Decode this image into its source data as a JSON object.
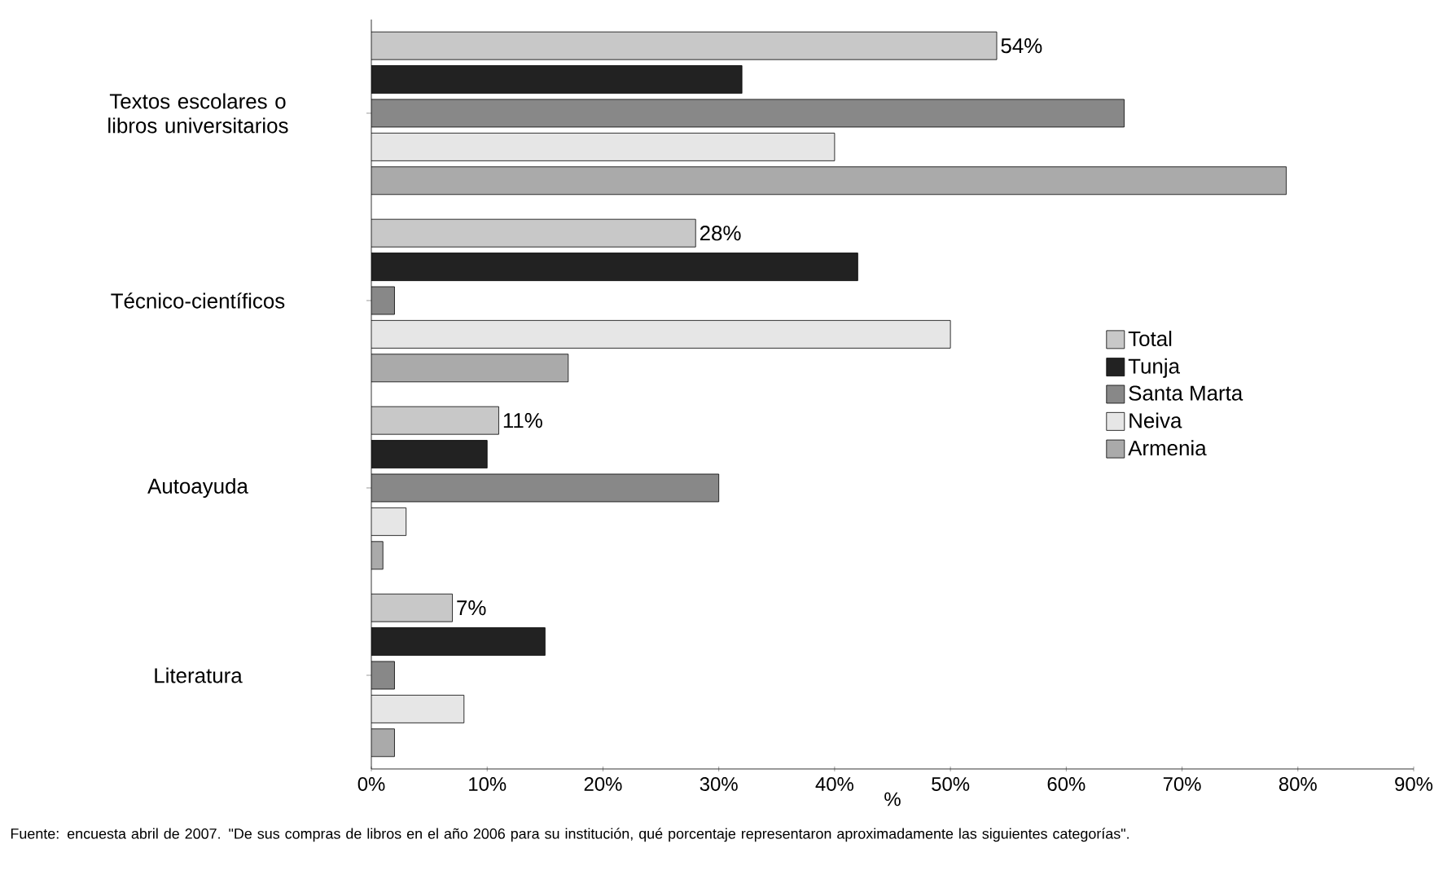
{
  "chart_data": {
    "type": "bar",
    "orientation": "horizontal",
    "categories": [
      "Textos escolares o libros universitarios",
      "Técnico-científicos",
      "Autoayuda",
      "Literatura"
    ],
    "series": [
      {
        "name": "Total",
        "color": "#c8c8c8",
        "values": [
          54,
          28,
          11,
          7
        ],
        "value_labels": [
          "54%",
          "28%",
          "11%",
          "7%"
        ]
      },
      {
        "name": "Tunja",
        "color": "#222222",
        "values": [
          32,
          42,
          10,
          15
        ]
      },
      {
        "name": "Santa Marta",
        "color": "#888888",
        "values": [
          65,
          2,
          30,
          2
        ]
      },
      {
        "name": "Neiva",
        "color": "#e6e6e6",
        "values": [
          40,
          50,
          3,
          8
        ]
      },
      {
        "name": "Armenia",
        "color": "#aaaaaa",
        "values": [
          79,
          17,
          1,
          2
        ]
      }
    ],
    "xlabel": "%",
    "xlim": [
      0,
      90
    ],
    "xticks": [
      {
        "value": 0,
        "label": "0%"
      },
      {
        "value": 10,
        "label": "10%"
      },
      {
        "value": 20,
        "label": "20%"
      },
      {
        "value": 30,
        "label": "30%"
      },
      {
        "value": 40,
        "label": "40%"
      },
      {
        "value": 50,
        "label": "50%"
      },
      {
        "value": 60,
        "label": "60%"
      },
      {
        "value": 70,
        "label": "70%"
      },
      {
        "value": 80,
        "label": "80%"
      },
      {
        "value": 90,
        "label": "90%"
      }
    ],
    "legend": "right",
    "grid": false,
    "annotations": [
      "Fuente: encuesta abril de 2007. \"De sus compras de libros en el año 2006 para su institución, qué porcentaje representaron aproximadamente las siguientes categorías\"."
    ]
  }
}
